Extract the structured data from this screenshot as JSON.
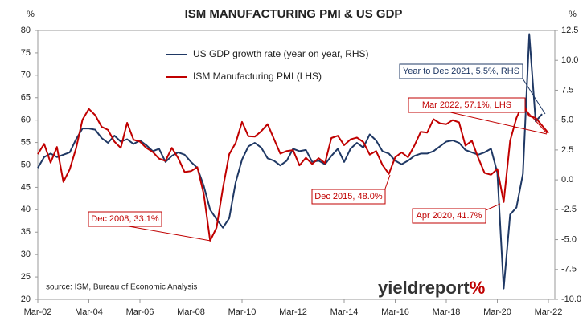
{
  "chart_data": {
    "type": "line",
    "title": "ISM MANUFACTURING PMI & US GDP",
    "y_label": "%",
    "y2_label": "%",
    "source": "source: ISM, Bureau of Economic Analysis",
    "logo": {
      "text": "yieldreport",
      "symbol": "%"
    },
    "categories": [
      "Mar-02",
      null,
      null,
      null,
      null,
      null,
      null,
      null,
      "Mar-04",
      null,
      null,
      null,
      null,
      null,
      null,
      null,
      "Mar-06",
      null,
      null,
      null,
      null,
      null,
      null,
      null,
      "Mar-08",
      null,
      null,
      null,
      null,
      null,
      null,
      null,
      "Mar-10",
      null,
      null,
      null,
      null,
      null,
      null,
      null,
      "Mar-12",
      null,
      null,
      null,
      null,
      null,
      null,
      null,
      "Mar-14",
      null,
      null,
      null,
      null,
      null,
      null,
      null,
      "Mar-16",
      null,
      null,
      null,
      null,
      null,
      null,
      null,
      "Mar-18",
      null,
      null,
      null,
      null,
      null,
      null,
      null,
      "Mar-20",
      null,
      null,
      null,
      null,
      null,
      null,
      null,
      "Mar-22"
    ],
    "series": [
      {
        "name": "US GDP growth rate (year on year, RHS)",
        "color": "#1f3864",
        "axis": "y2",
        "values": [
          1.0,
          1.9,
          2.2,
          1.9,
          2.1,
          2.3,
          3.4,
          4.3,
          4.3,
          4.2,
          3.5,
          3.1,
          3.7,
          3.2,
          3.4,
          3.0,
          3.3,
          2.9,
          2.4,
          2.6,
          1.5,
          2.0,
          2.3,
          2.1,
          1.5,
          1.0,
          -0.5,
          -2.5,
          -3.3,
          -4.0,
          -3.2,
          -0.2,
          1.7,
          2.8,
          3.1,
          2.7,
          1.8,
          1.6,
          1.2,
          1.6,
          2.6,
          2.4,
          2.5,
          1.5,
          1.6,
          1.3,
          2.0,
          2.6,
          1.5,
          2.6,
          3.1,
          2.7,
          3.8,
          3.3,
          2.4,
          2.2,
          1.6,
          1.3,
          1.6,
          2.0,
          2.2,
          2.2,
          2.4,
          2.8,
          3.2,
          3.3,
          3.1,
          2.5,
          2.3,
          2.1,
          2.3,
          2.6,
          0.6,
          -9.1,
          -2.9,
          -2.3,
          0.5,
          12.2,
          4.9,
          5.5,
          null
        ]
      },
      {
        "name": "ISM Manufacturing PMI (LHS)",
        "color": "#c00000",
        "values": [
          52.4,
          54.7,
          50.5,
          54.0,
          46.2,
          49.0,
          53.7,
          60.1,
          62.5,
          61.1,
          58.5,
          57.8,
          55.2,
          53.8,
          59.4,
          55.6,
          55.2,
          53.8,
          52.9,
          51.4,
          50.9,
          53.8,
          51.5,
          48.4,
          48.6,
          49.5,
          43.5,
          33.1,
          36.0,
          44.8,
          52.4,
          54.9,
          59.6,
          56.4,
          56.3,
          57.5,
          59.1,
          55.8,
          52.5,
          53.1,
          53.3,
          49.9,
          51.6,
          50.2,
          51.5,
          50.4,
          56.0,
          56.5,
          54.4,
          55.7,
          56.1,
          55.1,
          52.3,
          53.1,
          50.0,
          48.0,
          51.7,
          52.8,
          51.7,
          54.3,
          57.4,
          57.2,
          60.2,
          59.3,
          59.1,
          60.0,
          59.5,
          54.3,
          55.4,
          51.6,
          48.2,
          47.8,
          49.1,
          41.7,
          55.4,
          60.5,
          63.7,
          60.9,
          60.5,
          58.8,
          57.1
        ]
      }
    ],
    "ylim": [
      20,
      80
    ],
    "yticks": [
      20,
      25,
      30,
      35,
      40,
      45,
      50,
      55,
      60,
      65,
      70,
      75,
      80
    ],
    "y2lim": [
      -10,
      12.5
    ],
    "y2ticks": [
      {
        "value": -10,
        "label": "-10.0"
      },
      -7.5,
      {
        "value": -5,
        "label": "-5.0"
      },
      -2.5,
      {
        "value": 0,
        "label": "0.0"
      },
      2.5,
      {
        "value": 5,
        "label": "5.0"
      },
      7.5,
      {
        "value": 10,
        "label": "10.0"
      },
      12.5
    ],
    "annotations": [
      {
        "text": "Year to Dec 2021, 5.5%, RHS",
        "series": 0
      },
      {
        "text": "Mar 2022, 57.1%, LHS",
        "series": 1
      },
      {
        "text": "Dec 2015, 48.0%",
        "series": 1
      },
      {
        "text": "Apr 2020, 41.7%",
        "series": 1
      },
      {
        "text": "Dec 2008, 33.1%",
        "series": 1
      }
    ]
  }
}
